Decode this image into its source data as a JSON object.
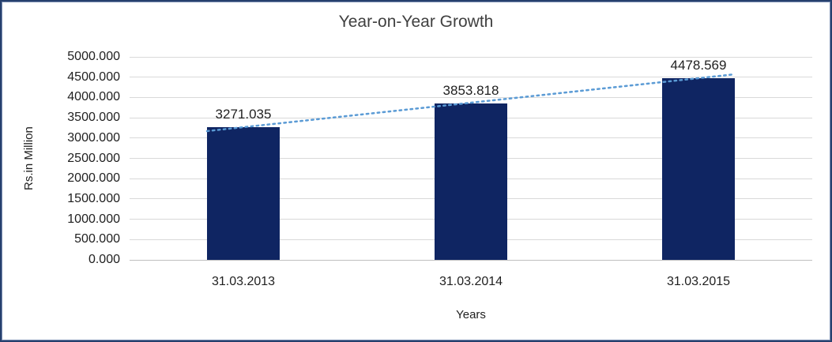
{
  "chart_data": {
    "type": "bar",
    "title": "Year-on-Year Growth",
    "categories": [
      "31.03.2013",
      "31.03.2014",
      "31.03.2015"
    ],
    "values": [
      3271.035,
      3853.818,
      4478.569
    ],
    "data_labels": [
      "3271.035",
      "3853.818",
      "4478.569"
    ],
    "xlabel": "Years",
    "ylabel": "Rs.in Million",
    "ylim": [
      0,
      5000
    ],
    "y_tick_step": 500,
    "y_tick_labels": [
      "0.000",
      "500.000",
      "1000.000",
      "1500.000",
      "2000.000",
      "2500.000",
      "3000.000",
      "3500.000",
      "4000.000",
      "4500.000",
      "5000.000"
    ],
    "grid": true,
    "legend_position": "none",
    "colors": {
      "bar": "#0f2562",
      "trendline": "#5b9bd5",
      "gridline": "#d9d9d9",
      "title_text": "#404040",
      "label_text": "#1f1f1f",
      "frame_border": "#26406e"
    },
    "trendline": {
      "style": "dotted",
      "color": "#5b9bd5"
    }
  }
}
